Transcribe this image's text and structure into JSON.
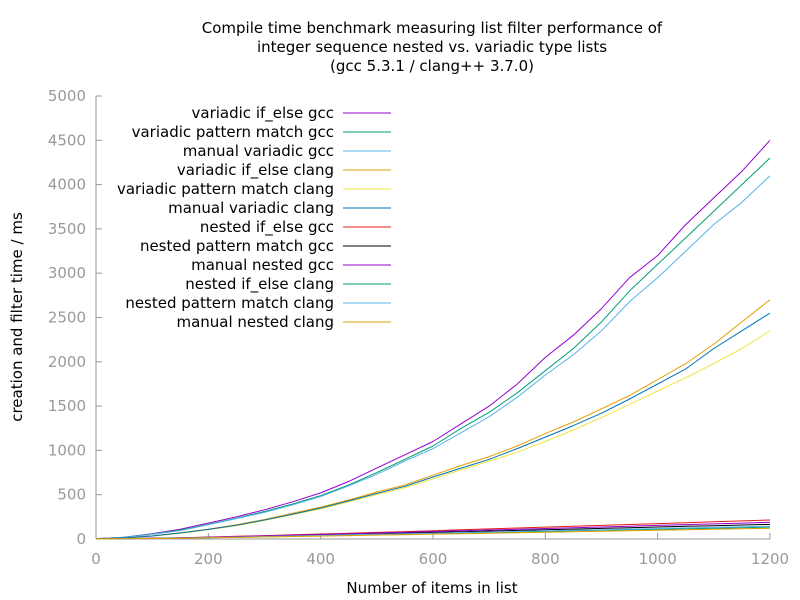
{
  "chart_data": {
    "type": "line",
    "title_lines": [
      "Compile time benchmark measuring list filter performance of",
      "integer sequence nested vs. variadic type lists",
      "(gcc 5.3.1 / clang++ 3.7.0)"
    ],
    "xlabel": "Number of items in list",
    "ylabel": "creation and filter time / ms",
    "xlim": [
      0,
      1200
    ],
    "ylim": [
      0,
      5000
    ],
    "x_ticks": [
      0,
      200,
      400,
      600,
      800,
      1000,
      1200
    ],
    "y_ticks": [
      0,
      500,
      1000,
      1500,
      2000,
      2500,
      3000,
      3500,
      4000,
      4500,
      5000
    ],
    "grid": false,
    "legend_position": "top-left",
    "x": [
      0,
      50,
      100,
      150,
      200,
      250,
      300,
      350,
      400,
      450,
      500,
      550,
      600,
      650,
      700,
      750,
      800,
      850,
      900,
      950,
      1000,
      1050,
      1100,
      1150,
      1200
    ],
    "series": [
      {
        "name": "variadic if_else gcc",
        "color": "#9400d3",
        "values": [
          5,
          20,
          60,
          110,
          180,
          250,
          330,
          420,
          520,
          650,
          800,
          950,
          1100,
          1300,
          1500,
          1750,
          2050,
          2300,
          2600,
          2950,
          3200,
          3550,
          3850,
          4150,
          4500
        ]
      },
      {
        "name": "variadic pattern match gcc",
        "color": "#009e73",
        "values": [
          5,
          18,
          55,
          100,
          165,
          235,
          310,
          395,
          490,
          610,
          750,
          900,
          1050,
          1250,
          1430,
          1650,
          1900,
          2150,
          2450,
          2800,
          3100,
          3400,
          3700,
          4000,
          4300
        ]
      },
      {
        "name": "manual variadic gcc",
        "color": "#56b4e9",
        "values": [
          5,
          17,
          52,
          95,
          160,
          230,
          300,
          385,
          480,
          600,
          730,
          880,
          1020,
          1200,
          1380,
          1600,
          1850,
          2080,
          2350,
          2680,
          2950,
          3250,
          3550,
          3800,
          4100
        ]
      },
      {
        "name": "variadic if_else clang",
        "color": "#e69f00",
        "values": [
          3,
          12,
          35,
          70,
          110,
          160,
          220,
          290,
          360,
          440,
          530,
          610,
          720,
          830,
          930,
          1050,
          1190,
          1320,
          1470,
          1620,
          1800,
          1980,
          2200,
          2450,
          2700
        ]
      },
      {
        "name": "variadic pattern match clang",
        "color": "#f0e442",
        "values": [
          3,
          11,
          33,
          65,
          105,
          150,
          210,
          275,
          340,
          420,
          500,
          580,
          680,
          780,
          880,
          980,
          1100,
          1230,
          1370,
          1520,
          1670,
          1820,
          1980,
          2150,
          2350
        ]
      },
      {
        "name": "manual variadic clang",
        "color": "#0072b2",
        "values": [
          3,
          12,
          34,
          68,
          108,
          155,
          215,
          280,
          350,
          430,
          515,
          595,
          700,
          800,
          900,
          1020,
          1150,
          1280,
          1420,
          1580,
          1750,
          1920,
          2150,
          2350,
          2550
        ]
      },
      {
        "name": "nested if_else gcc",
        "color": "#e51e10",
        "values": [
          1,
          4,
          9,
          15,
          22,
          30,
          38,
          47,
          56,
          65,
          75,
          84,
          94,
          104,
          114,
          124,
          134,
          144,
          154,
          164,
          174,
          184,
          194,
          204,
          214
        ]
      },
      {
        "name": "nested pattern match gcc",
        "color": "#000000",
        "values": [
          1,
          3,
          7,
          12,
          18,
          24,
          31,
          38,
          45,
          52,
          60,
          67,
          75,
          82,
          90,
          97,
          105,
          112,
          120,
          128,
          135,
          143,
          150,
          158,
          165
        ]
      },
      {
        "name": "manual nested gcc",
        "color": "#9400d3",
        "values": [
          1,
          4,
          8,
          14,
          20,
          27,
          35,
          43,
          51,
          59,
          68,
          76,
          85,
          93,
          102,
          110,
          119,
          128,
          136,
          145,
          153,
          162,
          170,
          179,
          188
        ]
      },
      {
        "name": "nested if_else clang",
        "color": "#009e73",
        "values": [
          1,
          3,
          6,
          10,
          15,
          20,
          26,
          32,
          38,
          44,
          50,
          56,
          62,
          68,
          74,
          80,
          86,
          92,
          98,
          104,
          110,
          116,
          122,
          128,
          134
        ]
      },
      {
        "name": "nested pattern match clang",
        "color": "#56b4e9",
        "values": [
          1,
          3,
          6,
          11,
          16,
          22,
          28,
          34,
          40,
          47,
          53,
          60,
          66,
          73,
          79,
          86,
          92,
          99,
          105,
          112,
          118,
          125,
          131,
          138,
          145
        ]
      },
      {
        "name": "manual nested clang",
        "color": "#e69f00",
        "values": [
          1,
          3,
          5,
          9,
          13,
          18,
          23,
          28,
          33,
          38,
          44,
          49,
          55,
          60,
          66,
          71,
          77,
          82,
          88,
          93,
          99,
          104,
          110,
          115,
          121
        ]
      }
    ]
  }
}
